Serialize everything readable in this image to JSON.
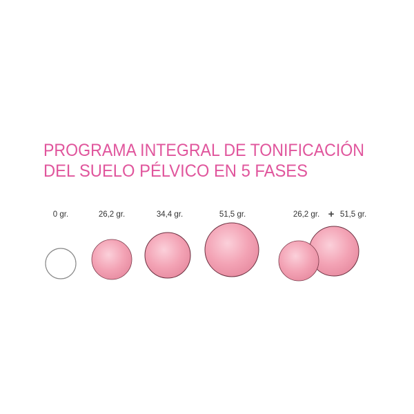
{
  "title": {
    "line1": "PROGRAMA INTEGRAL DE TONIFICACIÓN",
    "line2": "DEL SUELO PÉLVICO EN 5 FASES",
    "color": "#e0559c"
  },
  "phases": [
    {
      "label": "0 gr."
    },
    {
      "label": "26,2 gr."
    },
    {
      "label": "34,4 gr."
    },
    {
      "label": "51,5 gr."
    },
    {
      "label_a": "26,2 gr.",
      "plus": "+",
      "label_b": "51,5 gr."
    }
  ],
  "colors": {
    "ball": "#f3a3b5",
    "ball_edge": "#6b3040"
  }
}
